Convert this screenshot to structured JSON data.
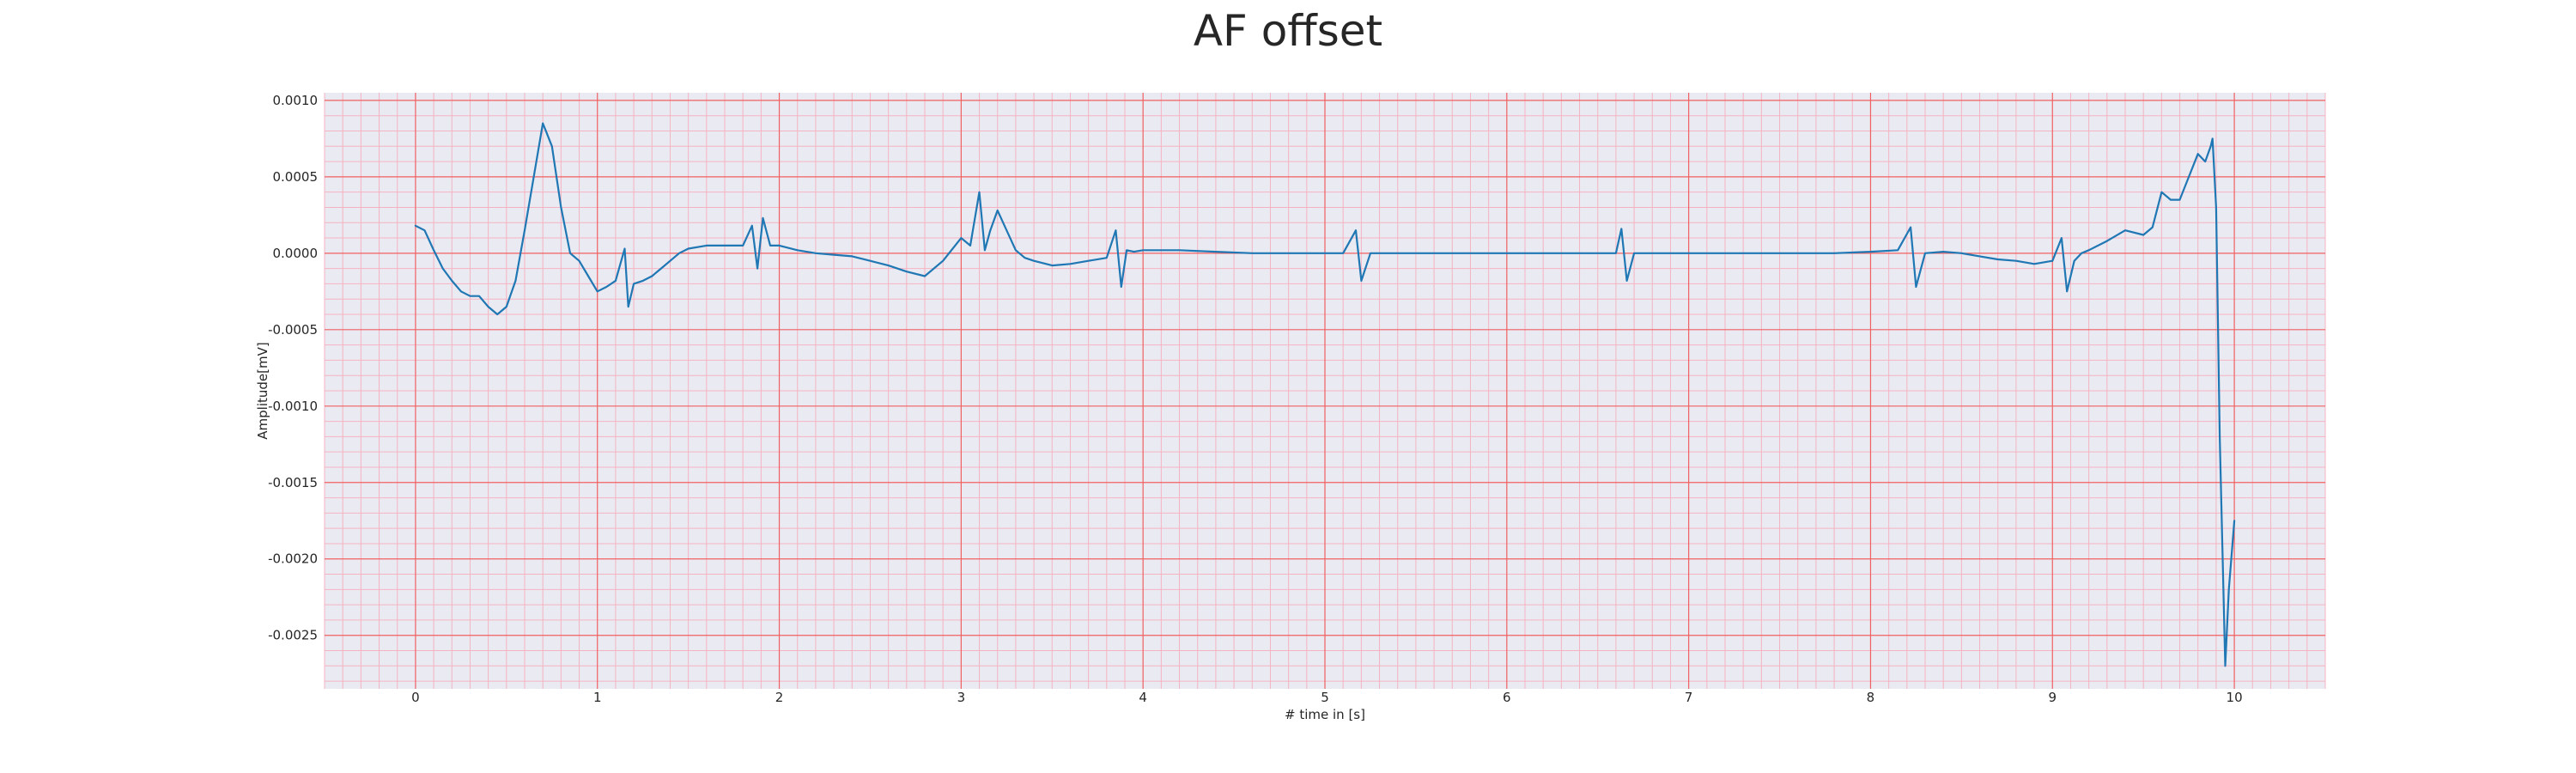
{
  "chart_data": {
    "type": "line",
    "title": "AF offset",
    "xlabel": "# time in [s]",
    "ylabel": "Amplitude[mV]",
    "xlim": [
      -0.5,
      10.5
    ],
    "ylim": [
      -0.00285,
      0.00105
    ],
    "x_ticks": [
      0,
      1,
      2,
      3,
      4,
      5,
      6,
      7,
      8,
      9,
      10
    ],
    "x_tick_labels": [
      "0",
      "1",
      "2",
      "3",
      "4",
      "5",
      "6",
      "7",
      "8",
      "9",
      "10"
    ],
    "y_ticks": [
      0.001,
      0.0005,
      0.0,
      -0.0005,
      -0.001,
      -0.0015,
      -0.002,
      -0.0025
    ],
    "y_tick_labels": [
      "0.0010",
      "0.0005",
      "0.0000",
      "-0.0005",
      "-0.0010",
      "-0.0015",
      "-0.0020",
      "-0.0025"
    ],
    "grid": true,
    "minor_grid": true,
    "series": [
      {
        "color": "#1f77b4",
        "x": [
          0,
          0.05,
          0.1,
          0.15,
          0.2,
          0.25,
          0.3,
          0.35,
          0.4,
          0.45,
          0.5,
          0.55,
          0.6,
          0.65,
          0.7,
          0.75,
          0.8,
          0.85,
          0.9,
          0.95,
          1.0,
          1.05,
          1.1,
          1.15,
          1.17,
          1.2,
          1.25,
          1.3,
          1.35,
          1.4,
          1.45,
          1.5,
          1.6,
          1.7,
          1.8,
          1.85,
          1.88,
          1.91,
          1.95,
          2.0,
          2.1,
          2.2,
          2.3,
          2.4,
          2.5,
          2.6,
          2.7,
          2.8,
          2.9,
          3.0,
          3.05,
          3.1,
          3.13,
          3.16,
          3.2,
          3.25,
          3.3,
          3.35,
          3.4,
          3.5,
          3.6,
          3.7,
          3.8,
          3.85,
          3.88,
          3.91,
          3.95,
          4.0,
          4.2,
          4.4,
          4.6,
          4.8,
          5.0,
          5.1,
          5.17,
          5.2,
          5.25,
          5.4,
          5.6,
          5.8,
          6.0,
          6.2,
          6.4,
          6.6,
          6.63,
          6.66,
          6.7,
          6.8,
          7.0,
          7.2,
          7.4,
          7.6,
          7.8,
          8.0,
          8.15,
          8.22,
          8.25,
          8.3,
          8.4,
          8.5,
          8.6,
          8.7,
          8.8,
          8.9,
          9.0,
          9.05,
          9.08,
          9.12,
          9.16,
          9.2,
          9.3,
          9.4,
          9.5,
          9.55,
          9.6,
          9.65,
          9.7,
          9.75,
          9.8,
          9.84,
          9.87,
          9.88,
          9.9,
          9.92,
          9.95,
          9.97,
          10.0
        ],
        "y": [
          0.00018,
          0.00015,
          2e-05,
          -0.0001,
          -0.00018,
          -0.00025,
          -0.00028,
          -0.00028,
          -0.00035,
          -0.0004,
          -0.00035,
          -0.00018,
          0.00015,
          0.0005,
          0.00085,
          0.0007,
          0.0003,
          0.0,
          -5e-05,
          -0.00015,
          -0.00025,
          -0.00022,
          -0.00018,
          3e-05,
          -0.00035,
          -0.0002,
          -0.00018,
          -0.00015,
          -0.0001,
          -5e-05,
          0.0,
          3e-05,
          5e-05,
          5e-05,
          5e-05,
          0.00018,
          -0.0001,
          0.00023,
          5e-05,
          5e-05,
          2e-05,
          0.0,
          -1e-05,
          -2e-05,
          -5e-05,
          -8e-05,
          -0.00012,
          -0.00015,
          -5e-05,
          0.0001,
          5e-05,
          0.0004,
          2e-05,
          0.00015,
          0.00028,
          0.00015,
          2e-05,
          -3e-05,
          -5e-05,
          -8e-05,
          -7e-05,
          -5e-05,
          -3e-05,
          0.00015,
          -0.00022,
          2e-05,
          1e-05,
          2e-05,
          2e-05,
          1e-05,
          0.0,
          0.0,
          0.0,
          0.0,
          0.00015,
          -0.00018,
          0.0,
          0.0,
          0.0,
          0.0,
          0.0,
          0.0,
          0.0,
          0.0,
          0.00016,
          -0.00018,
          0.0,
          0.0,
          0.0,
          0.0,
          0.0,
          0.0,
          0.0,
          1e-05,
          2e-05,
          0.00017,
          -0.00022,
          0.0,
          1e-05,
          0.0,
          -2e-05,
          -4e-05,
          -5e-05,
          -7e-05,
          -5e-05,
          0.0001,
          -0.00025,
          -5e-05,
          0.0,
          2e-05,
          8e-05,
          0.00015,
          0.00012,
          0.00017,
          0.0004,
          0.00035,
          0.00035,
          0.0005,
          0.00065,
          0.0006,
          0.0007,
          0.00075,
          0.0003,
          -0.0012,
          -0.0027,
          -0.0022,
          -0.00175
        ]
      }
    ]
  }
}
